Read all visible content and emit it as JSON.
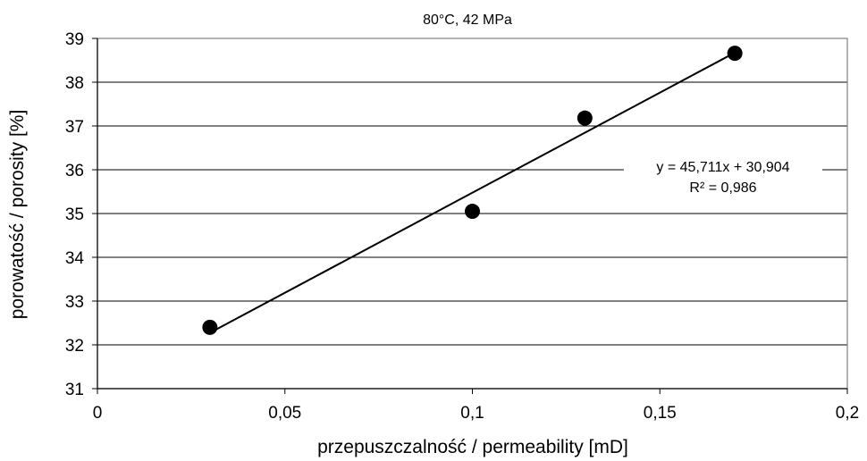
{
  "chart_data": {
    "type": "scatter",
    "title": "80°C, 42 MPa",
    "xlabel": "przepuszczalność / permeability [mD]",
    "ylabel": "porowatość / porosity [%]",
    "xlim": [
      0,
      0.2
    ],
    "ylim": [
      31,
      39
    ],
    "x_ticks": [
      0,
      0.05,
      0.1,
      0.15,
      0.2
    ],
    "x_tick_labels": [
      "0",
      "0,05",
      "0,1",
      "0,15",
      "0,2"
    ],
    "y_ticks": [
      31,
      32,
      33,
      34,
      35,
      36,
      37,
      38,
      39
    ],
    "y_tick_labels": [
      "31",
      "32",
      "33",
      "34",
      "35",
      "36",
      "37",
      "38",
      "39"
    ],
    "grid": "horizontal",
    "legend": "none",
    "points": [
      {
        "x": 0.03,
        "y": 32.4
      },
      {
        "x": 0.1,
        "y": 35.05
      },
      {
        "x": 0.13,
        "y": 37.18
      },
      {
        "x": 0.17,
        "y": 38.66
      }
    ],
    "trendline": {
      "type": "linear",
      "slope": 45.711,
      "intercept": 30.904,
      "x_range": [
        0.03,
        0.17
      ],
      "equation_label": "y = 45,711x + 30,904",
      "r2_label": "R² = 0,986"
    },
    "colors": {
      "marker": "#000000",
      "line": "#000000",
      "grid": "#000000",
      "plot_border": "#808080",
      "background": "#ffffff"
    }
  }
}
